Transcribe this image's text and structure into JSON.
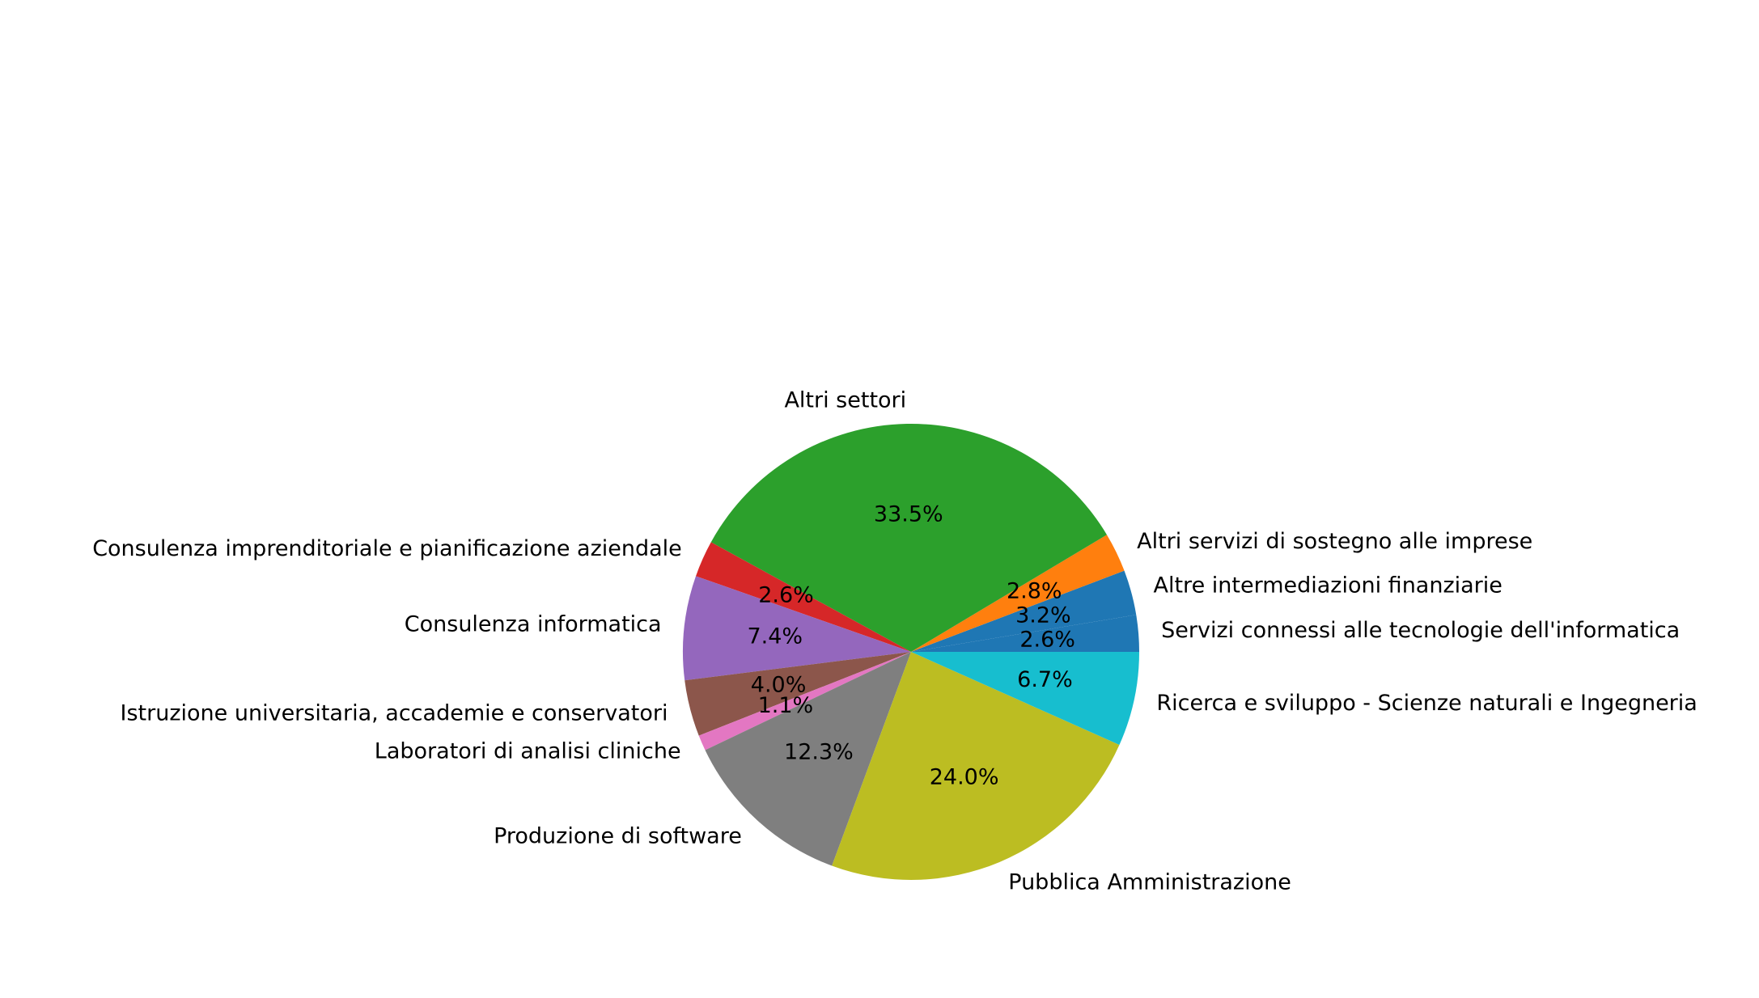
{
  "chart_data": {
    "type": "pie",
    "title": "",
    "start_angle_deg": 0,
    "direction": "counterclockwise",
    "slices": [
      {
        "label": "Servizi connessi alle tecnologie dell'informatica",
        "value": 2.6,
        "pct_label": "2.6%",
        "color": "#1f77b4"
      },
      {
        "label": "Altre intermediazioni finanziarie",
        "value": 3.2,
        "pct_label": "3.2%",
        "color": "#1f77b4"
      },
      {
        "label": "Altri servizi di sostegno alle imprese",
        "value": 2.8,
        "pct_label": "2.8%",
        "color": "#ff7f0e"
      },
      {
        "label": "Altri settori",
        "value": 33.5,
        "pct_label": "33.5%",
        "color": "#2ca02c"
      },
      {
        "label": "Consulenza imprenditoriale e pianificazione aziendale",
        "value": 2.6,
        "pct_label": "2.6%",
        "color": "#d62728"
      },
      {
        "label": "Consulenza informatica",
        "value": 7.4,
        "pct_label": "7.4%",
        "color": "#9467bd"
      },
      {
        "label": "Istruzione universitaria, accademie e conservatori",
        "value": 4.0,
        "pct_label": "4.0%",
        "color": "#8c564b"
      },
      {
        "label": "Laboratori di analisi cliniche",
        "value": 1.1,
        "pct_label": "1.1%",
        "color": "#e377c2"
      },
      {
        "label": "Produzione di software",
        "value": 12.3,
        "pct_label": "12.3%",
        "color": "#7f7f7f"
      },
      {
        "label": "Pubblica Amministrazione",
        "value": 24.0,
        "pct_label": "24.0%",
        "color": "#bcbd22"
      },
      {
        "label": "Ricerca e sviluppo - Scienze naturali e Ingegneria",
        "value": 6.7,
        "pct_label": "6.7%",
        "color": "#17becf"
      }
    ]
  }
}
